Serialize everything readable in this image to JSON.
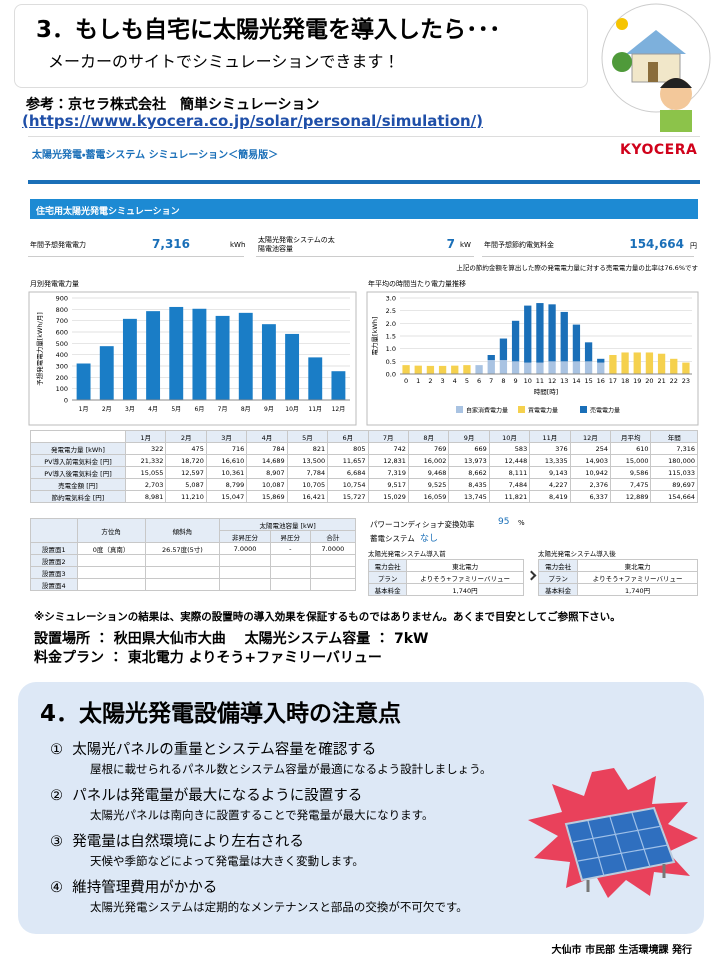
{
  "header": {
    "title": "3．もしも自宅に太陽光発電を導入したら･･･",
    "subtitle": "メーカーのサイトでシミュレーションできます！"
  },
  "reference": {
    "label": "参考：京セラ株式会社　簡単シミュレーション",
    "url": "(https://www.kyocera.co.jp/solar/personal/simulation/)"
  },
  "simulator": {
    "app_title": "太陽光発電・蓄電システム シミュレーション＜簡易版＞",
    "logo": "KYOCERA",
    "panel_title": "住宅用太陽光発電シミュレーション",
    "summary": [
      {
        "label": "年間予想発電電力",
        "value": "7,316",
        "unit": "kWh"
      },
      {
        "label": "太陽光発電システムの太陽電池容量",
        "value": "7",
        "unit": "kW"
      },
      {
        "label": "年間予想節約電気料金",
        "value": "154,664",
        "unit": "円"
      }
    ],
    "note": "上記の節約金額を算出した際の発電電力量に対する売電電力量の比率は76.6%です",
    "monthly_table": {
      "header": [
        "1月",
        "2月",
        "3月",
        "4月",
        "5月",
        "6月",
        "7月",
        "8月",
        "9月",
        "10月",
        "11月",
        "12月",
        "月平均",
        "年間"
      ],
      "rows": [
        [
          "発電電力量 [kWh]",
          "322",
          "475",
          "716",
          "784",
          "821",
          "805",
          "742",
          "769",
          "669",
          "583",
          "376",
          "254",
          "610",
          "7,316"
        ],
        [
          "PV導入前電気料金 [円]",
          "21,332",
          "18,720",
          "16,610",
          "14,689",
          "13,500",
          "11,657",
          "12,831",
          "16,002",
          "13,973",
          "12,448",
          "13,335",
          "14,903",
          "15,000",
          "180,000"
        ],
        [
          "PV導入後電気料金 [円]",
          "15,055",
          "12,597",
          "10,361",
          "8,907",
          "7,784",
          "6,684",
          "7,319",
          "9,468",
          "8,662",
          "8,111",
          "9,143",
          "10,942",
          "9,586",
          "115,033"
        ],
        [
          "売電金額 [円]",
          "2,703",
          "5,087",
          "8,799",
          "10,087",
          "10,705",
          "10,754",
          "9,517",
          "9,525",
          "8,435",
          "7,484",
          "4,227",
          "2,376",
          "7,475",
          "89,697"
        ],
        [
          "節約電気料金 [円]",
          "8,981",
          "11,210",
          "15,047",
          "15,869",
          "16,421",
          "15,727",
          "15,029",
          "16,059",
          "13,745",
          "11,821",
          "8,419",
          "6,337",
          "12,889",
          "154,664"
        ]
      ]
    },
    "install_table": {
      "header": [
        "方位角",
        "傾斜角",
        "太陽電池容量 [kW]"
      ],
      "subheader": [
        "非昇圧分",
        "昇圧分",
        "合計"
      ],
      "rows": [
        [
          "設置面1",
          "0度（真南）",
          "26.57度(5寸)",
          "7.0000",
          "-",
          "7.0000"
        ],
        [
          "設置面2"
        ],
        [
          "設置面3"
        ],
        [
          "設置面4"
        ]
      ]
    },
    "inverter": {
      "label": "パワーコンディショナ変換効率",
      "value": "95",
      "unit": "%"
    },
    "storage": {
      "label": "蓄電システム",
      "value": "なし"
    },
    "plans": [
      {
        "title": "太陽光発電システム導入前",
        "rows": [
          [
            "電力会社",
            "東北電力"
          ],
          [
            "プラン",
            "よりそう+ファミリーバリュー"
          ],
          [
            "基本料金",
            "1,740円"
          ]
        ]
      },
      {
        "title": "太陽光発電システム導入後",
        "rows": [
          [
            "電力会社",
            "東北電力"
          ],
          [
            "プラン",
            "よりそう+ファミリーバリュー"
          ],
          [
            "基本料金",
            "1,740円"
          ]
        ]
      }
    ]
  },
  "chart_data": [
    {
      "type": "bar",
      "title": "月別発電電力量",
      "y_label": "予想発電電力量[kWh/月]",
      "categories": [
        "1月",
        "2月",
        "3月",
        "4月",
        "5月",
        "6月",
        "7月",
        "8月",
        "9月",
        "10月",
        "11月",
        "12月"
      ],
      "values": [
        322,
        475,
        716,
        784,
        821,
        805,
        742,
        769,
        669,
        583,
        376,
        254
      ],
      "color": "#1a7dc6",
      "ylim": [
        0,
        900
      ],
      "yticks": [
        0,
        100,
        200,
        300,
        400,
        500,
        600,
        700,
        800,
        900
      ],
      "grid": true
    },
    {
      "type": "stacked_bar",
      "title": "年平均の時間当たり電力量推移",
      "y_label": "電力量[kWh]",
      "x_label": "時間[時]",
      "categories": [
        "0",
        "1",
        "2",
        "3",
        "4",
        "5",
        "6",
        "7",
        "8",
        "9",
        "10",
        "11",
        "12",
        "13",
        "14",
        "15",
        "16",
        "17",
        "18",
        "19",
        "20",
        "21",
        "22",
        "23"
      ],
      "series": [
        {
          "name": "自家消費電力量",
          "color": "#a9c3e2",
          "values": [
            0,
            0,
            0,
            0,
            0,
            0,
            0.35,
            0.55,
            0.55,
            0.5,
            0.45,
            0.45,
            0.5,
            0.5,
            0.5,
            0.5,
            0.45,
            0,
            0,
            0,
            0,
            0,
            0,
            0
          ]
        },
        {
          "name": "買電電力量",
          "color": "#f5d14e",
          "values": [
            0.35,
            0.33,
            0.32,
            0.32,
            0.33,
            0.35,
            0,
            0,
            0,
            0,
            0,
            0,
            0,
            0,
            0,
            0,
            0,
            0.75,
            0.85,
            0.85,
            0.85,
            0.8,
            0.6,
            0.45
          ]
        },
        {
          "name": "売電電力量",
          "color": "#1a6fb8",
          "values": [
            0,
            0,
            0,
            0,
            0,
            0,
            0,
            0.2,
            0.85,
            1.6,
            2.25,
            2.35,
            2.25,
            1.95,
            1.45,
            0.75,
            0.15,
            0,
            0,
            0,
            0,
            0,
            0,
            0
          ]
        }
      ],
      "ylim": [
        0,
        3
      ],
      "yticks": [
        {
          "value": 0,
          "label": "0.0"
        },
        0.5,
        {
          "value": 1,
          "label": "1.0"
        },
        1.5,
        {
          "value": 2,
          "label": "2.0"
        },
        2.5,
        {
          "value": 3,
          "label": "3.0"
        }
      ],
      "grid": true,
      "legend": "bottom"
    }
  ],
  "disclaimer": "※シミュレーションの結果は、実際の設置時の導入効果を保証するものではありません。あくまで目安としてご参照下さい。",
  "conditions": [
    "設置場所 ： 秋田県大仙市大曲　 太陽光システム容量 ： 7kW",
    "料金プラン ： 東北電力 よりそう+ファミリーバリュー"
  ],
  "section4": {
    "title": "4．太陽光発電設備導入時の注意点",
    "items": [
      {
        "heading": "①  太陽光パネルの重量とシステム容量を確認する",
        "body": "屋根に載せられるパネル数とシステム容量が最適になるよう設計しましょう。"
      },
      {
        "heading": "②  パネルは発電量が最大になるように設置する",
        "body": "太陽光パネルは南向きに設置することで発電量が最大になります。"
      },
      {
        "heading": "③  発電量は自然環境により左右される",
        "body": "天候や季節などによって発電量は大きく変動します。"
      },
      {
        "heading": "④  維持管理費用がかかる",
        "body": "太陽光発電システムは定期的なメンテナンスと部品の交換が不可欠です。"
      }
    ]
  },
  "footer": "大仙市 市民部 生活環境課 発行"
}
